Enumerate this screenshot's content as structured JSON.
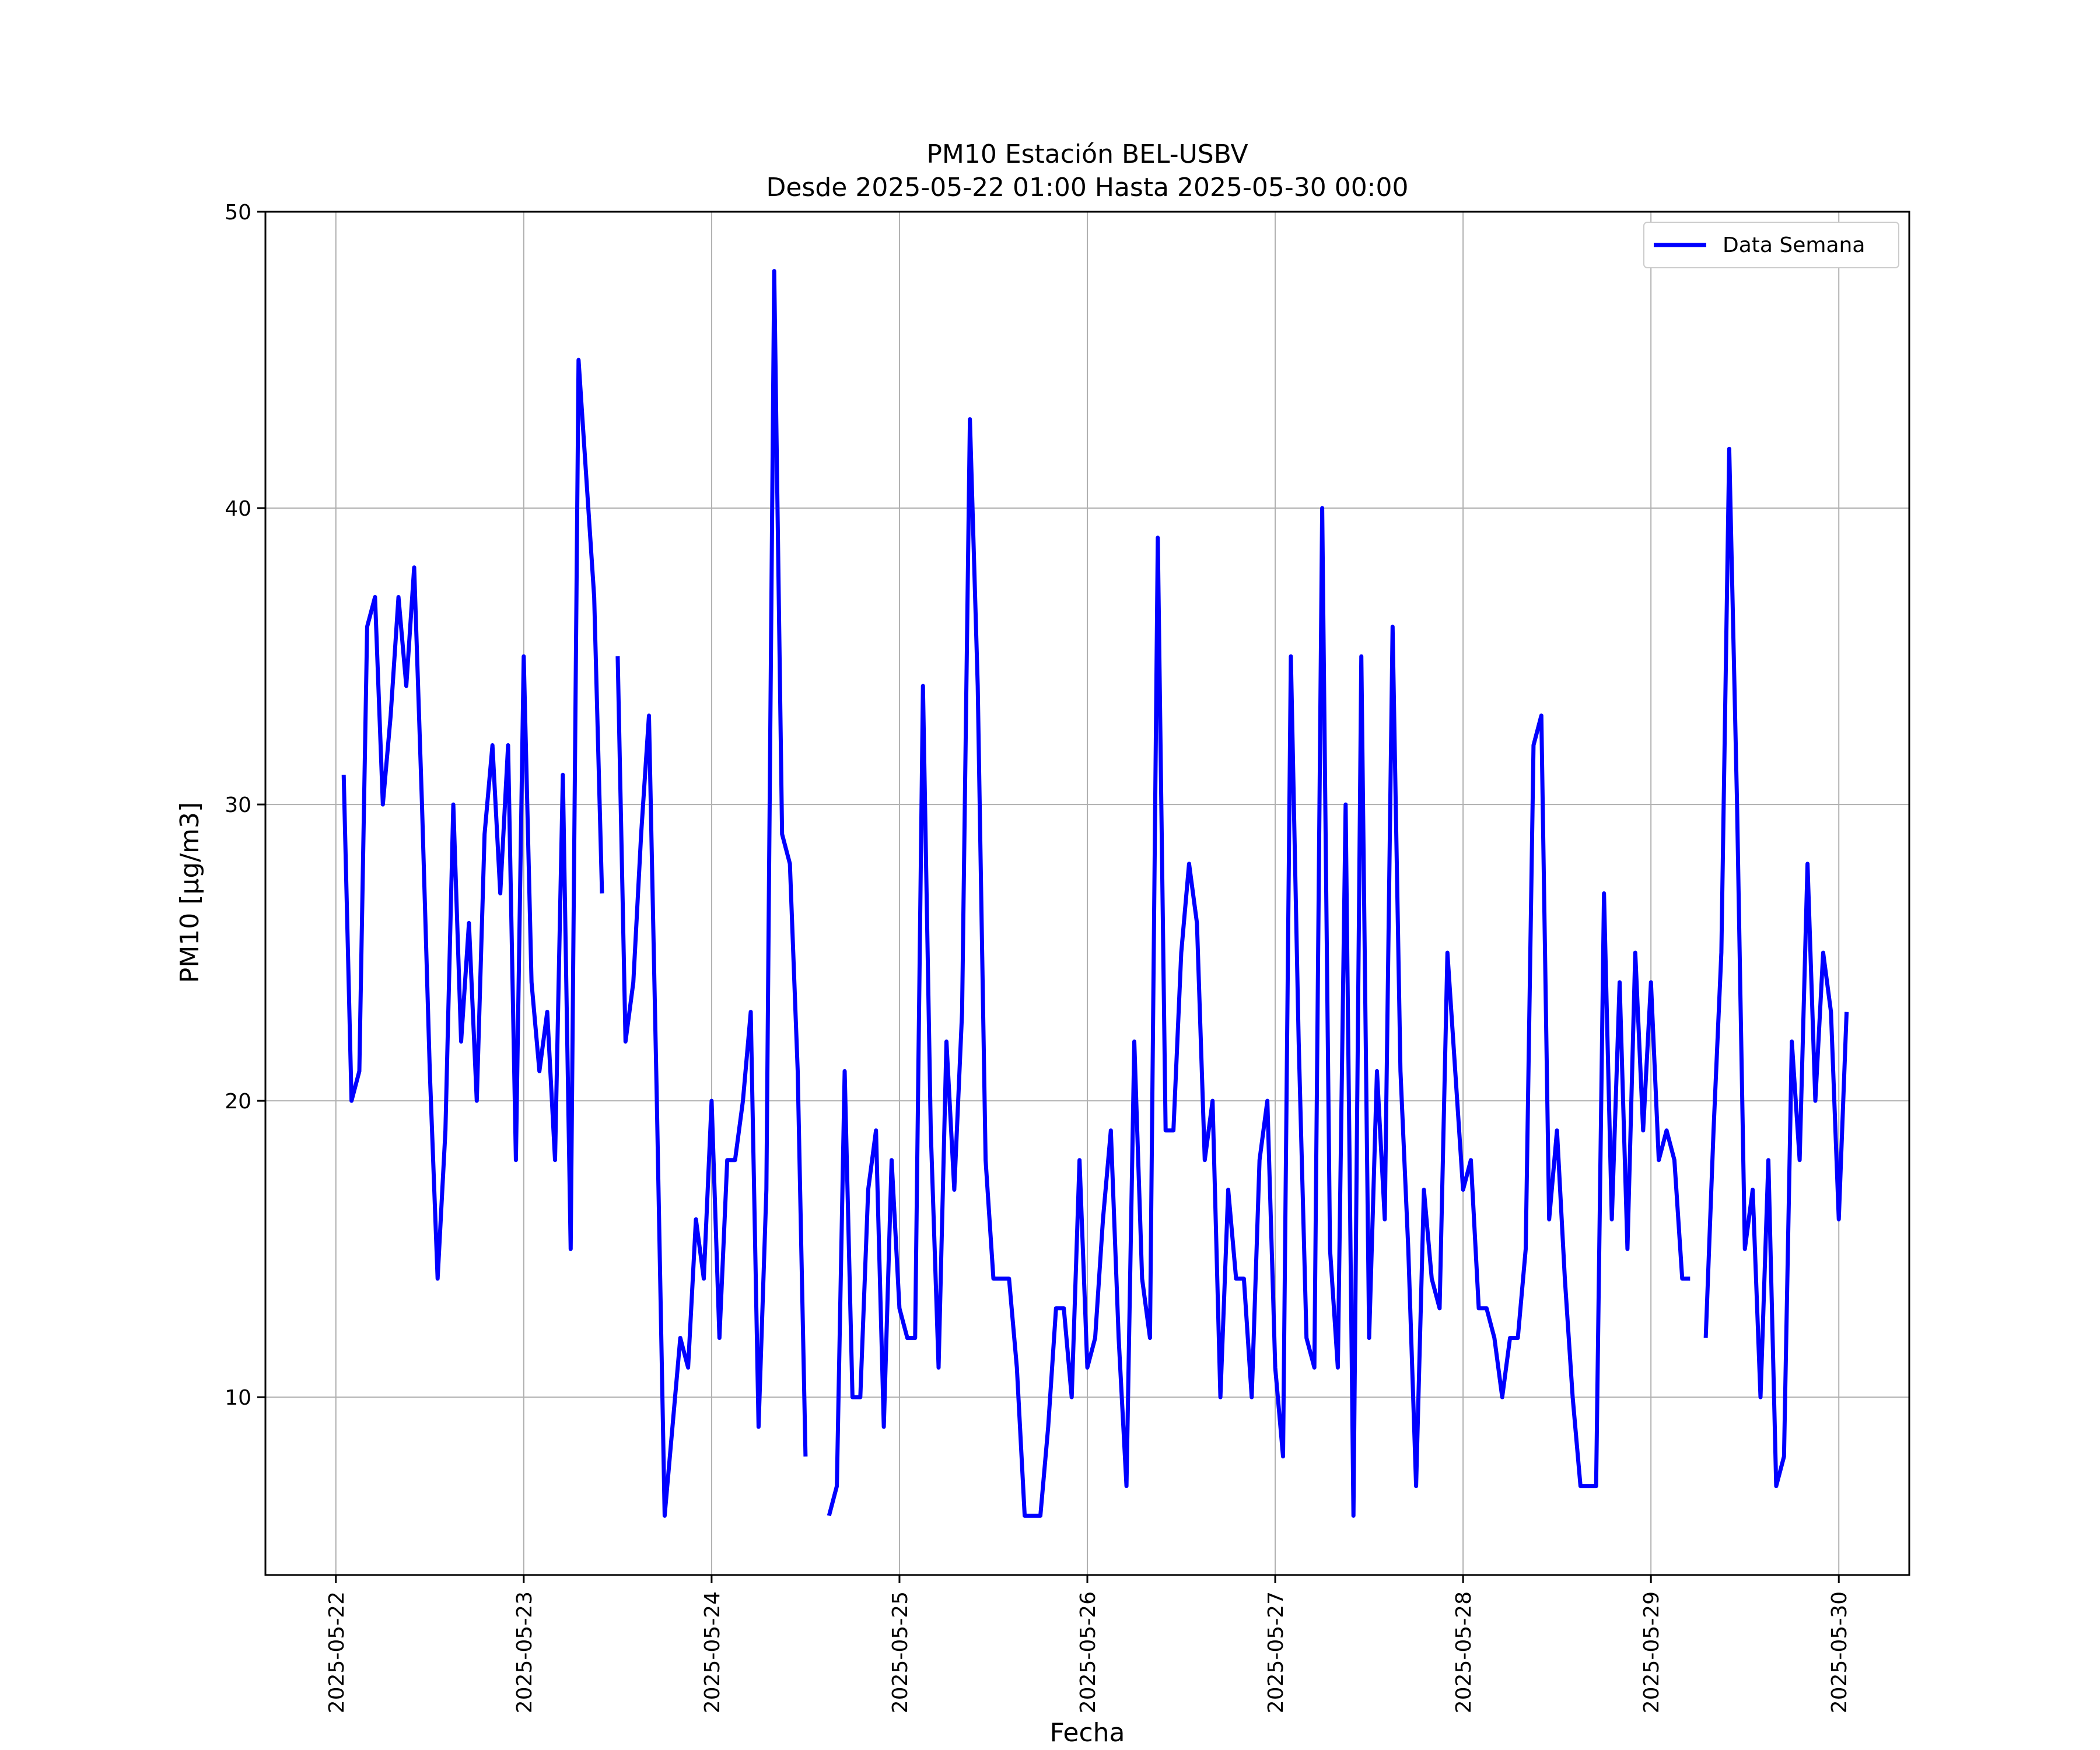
{
  "chart_data": {
    "type": "line",
    "title": "PM10 Estación BEL-USBV",
    "subtitle": "Desde 2025-05-22 01:00 Hasta 2025-05-30 00:00",
    "xlabel": "Fecha",
    "ylabel": "PM10 [μg/m3]",
    "x_range": [
      "2025-05-21 15:00",
      "2025-05-30 09:00"
    ],
    "ylim": [
      4,
      50
    ],
    "yticks": [
      10,
      20,
      30,
      40,
      50
    ],
    "xticks": [
      "2025-05-22",
      "2025-05-23",
      "2025-05-24",
      "2025-05-25",
      "2025-05-26",
      "2025-05-27",
      "2025-05-28",
      "2025-05-29",
      "2025-05-30"
    ],
    "grid": true,
    "legend_position": "top-right",
    "series_start": "2025-05-22 01:00",
    "series_step": "1h",
    "series": [
      {
        "name": "Data Semana",
        "color": "#0000ff",
        "values": [
          31,
          20,
          21,
          36,
          37,
          30,
          33,
          37,
          34,
          38,
          30,
          21,
          14,
          19,
          30,
          22,
          26,
          20,
          29,
          32,
          27,
          32,
          18,
          35,
          24,
          21,
          23,
          18,
          31,
          15,
          45,
          41,
          37,
          27,
          null,
          35,
          22,
          24,
          29,
          33,
          20,
          6,
          9,
          12,
          11,
          16,
          14,
          20,
          12,
          18,
          18,
          20,
          23,
          9,
          17,
          48,
          29,
          28,
          21,
          8,
          null,
          null,
          6,
          7,
          21,
          10,
          10,
          17,
          19,
          9,
          18,
          13,
          12,
          12,
          34,
          19,
          11,
          22,
          17,
          23,
          43,
          34,
          18,
          14,
          14,
          14,
          11,
          6,
          6,
          6,
          9,
          13,
          13,
          10,
          18,
          11,
          12,
          16,
          19,
          12,
          7,
          22,
          14,
          12,
          39,
          19,
          19,
          25,
          28,
          26,
          18,
          20,
          10,
          17,
          14,
          14,
          10,
          18,
          20,
          11,
          8,
          35,
          22,
          12,
          11,
          40,
          15,
          11,
          30,
          6,
          35,
          12,
          21,
          16,
          36,
          21,
          15,
          7,
          17,
          14,
          13,
          25,
          21,
          17,
          18,
          13,
          13,
          12,
          10,
          12,
          12,
          15,
          32,
          33,
          16,
          19,
          14,
          10,
          7,
          7,
          7,
          27,
          16,
          24,
          15,
          25,
          19,
          24,
          18,
          19,
          18,
          14,
          14,
          null,
          12,
          19,
          25,
          42,
          30,
          15,
          17,
          10,
          18,
          7,
          8,
          22,
          18,
          28,
          20,
          25,
          23,
          16,
          23
        ]
      }
    ]
  }
}
